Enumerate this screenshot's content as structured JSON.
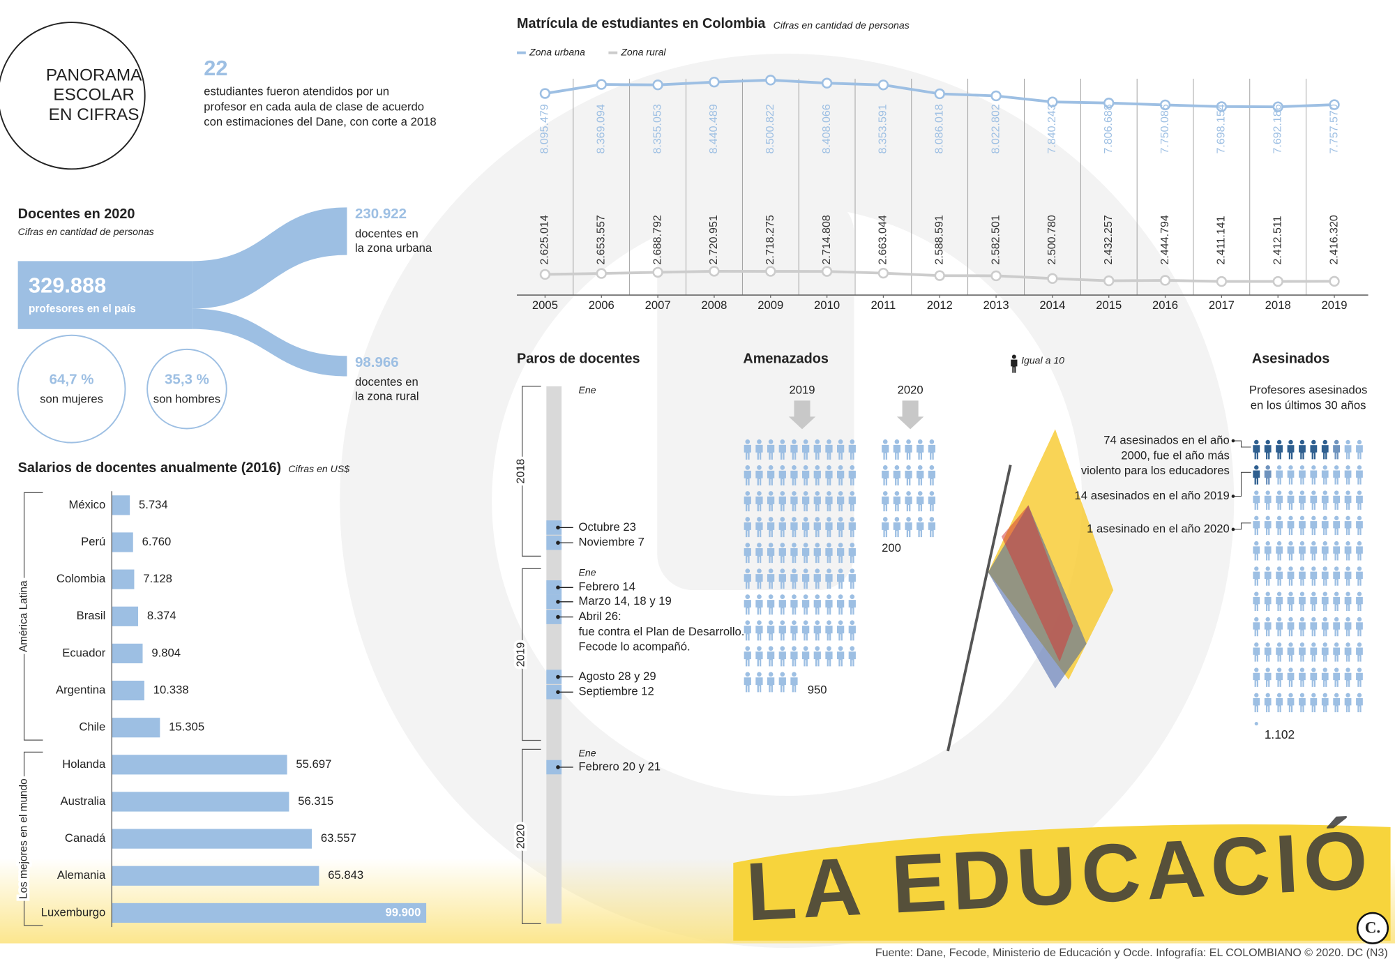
{
  "header": {
    "title": [
      "PANORAMA",
      "ESCOLAR",
      "EN CIFRAS"
    ],
    "stat": "22",
    "stat_text": [
      "estudiantes fueron atendidos por un",
      "profesor en cada aula de clase de acuerdo",
      "con estimaciones del Dane, con corte a 2018"
    ]
  },
  "chart_data": [
    {
      "type": "line",
      "title": "Matrícula de estudiantes en Colombia",
      "subtitle": "Cifras en cantidad de personas",
      "x": [
        2005,
        2006,
        2007,
        2008,
        2009,
        2010,
        2011,
        2012,
        2013,
        2014,
        2015,
        2016,
        2017,
        2018,
        2019
      ],
      "xlim": [
        2004.5,
        2019.6
      ],
      "ylim": [
        2000000,
        9300000
      ],
      "series": [
        {
          "name": "Zona urbana",
          "color": "#9dbfe3",
          "values": [
            8095479,
            8369094,
            8355053,
            8440489,
            8500822,
            8408066,
            8353591,
            8086018,
            8022802,
            7840243,
            7806688,
            7750086,
            7698154,
            7692186,
            7757570
          ],
          "value_labels": [
            "8.095.479",
            "8.369.094",
            "8.355.053",
            "8.440.489",
            "8.500.822",
            "8.408.066",
            "8.353.591",
            "8.086.018",
            "8.022.802",
            "7.840.243",
            "7.806.688",
            "7.750.086",
            "7.698.154",
            "7.692.186",
            "7.757.570"
          ]
        },
        {
          "name": "Zona rural",
          "color": "#cccccc",
          "values": [
            2625014,
            2653557,
            2688792,
            2720951,
            2718275,
            2714808,
            2663044,
            2588591,
            2582501,
            2500780,
            2432257,
            2444794,
            2411141,
            2412511,
            2416320
          ],
          "value_labels": [
            "2.625.014",
            "2.653.557",
            "2.688.792",
            "2.720.951",
            "2.718.275",
            "2.714.808",
            "2.663.044",
            "2.588.591",
            "2.582.501",
            "2.500.780",
            "2.432.257",
            "2.444.794",
            "2.411.141",
            "2.412.511",
            "2.416.320"
          ]
        }
      ]
    },
    {
      "type": "bar",
      "orientation": "horizontal",
      "title": "Salarios de docentes anualmente (2016)",
      "subtitle": "Cifras en US$",
      "categories": [
        "México",
        "Perú",
        "Colombia",
        "Brasil",
        "Ecuador",
        "Argentina",
        "Chile",
        "Holanda",
        "Australia",
        "Canadá",
        "Alemania",
        "Luxemburgo"
      ],
      "values": [
        5734,
        6760,
        7128,
        8374,
        9804,
        10338,
        15305,
        55697,
        56315,
        63557,
        65843,
        99900
      ],
      "value_labels": [
        "5.734",
        "6.760",
        "7.128",
        "8.374",
        "9.804",
        "10.338",
        "15.305",
        "55.697",
        "56.315",
        "63.557",
        "65.843",
        "99.900"
      ],
      "color": "#9dbfe3",
      "xlim": [
        0,
        100000
      ],
      "groups": [
        {
          "name": "América Latina",
          "members": [
            "México",
            "Perú",
            "Colombia",
            "Brasil",
            "Ecuador",
            "Argentina",
            "Chile"
          ]
        },
        {
          "name": "Los mejores en el mundo",
          "members": [
            "Holanda",
            "Australia",
            "Canadá",
            "Alemania",
            "Luxemburgo"
          ]
        }
      ]
    },
    {
      "type": "sankey",
      "title": "Docentes en 2020",
      "subtitle": "Cifras en cantidad de personas",
      "color": "#9dbfe3",
      "total": {
        "value": 329888,
        "label": "329.888",
        "text": "profesores en el país"
      },
      "flows": [
        {
          "value": 230922,
          "label": "230.922",
          "text": [
            "docentes en",
            "la zona urbana"
          ]
        },
        {
          "value": 98966,
          "label": "98.966",
          "text": [
            "docentes en",
            "la zona rural"
          ]
        }
      ],
      "shares": [
        {
          "value": 64.7,
          "label": "64,7 %",
          "text": "son mujeres"
        },
        {
          "value": 35.3,
          "label": "35,3 %",
          "text": "son hombres"
        }
      ]
    },
    {
      "type": "pictogram",
      "title": "Amenazados",
      "unit": 10,
      "unit_label": "Igual a 10",
      "color": "#9dbfe3",
      "groups": [
        {
          "name": "2019",
          "value": 950
        },
        {
          "name": "2020",
          "value": 200
        }
      ]
    },
    {
      "type": "pictogram",
      "title": "Asesinados",
      "subtitle": [
        "Profesores asesinados",
        "en los últimos 30 años"
      ],
      "color": "#9dbfe3",
      "highlight_color": "#2f5f8f",
      "value": 1102,
      "value_label": "1.102",
      "annotations": [
        {
          "value": 74,
          "text": [
            "74 asesinados en el año",
            "2000, fue el año más",
            "violento para los educadores"
          ]
        },
        {
          "value": 14,
          "text": [
            "14 asesinados en el año 2019"
          ]
        },
        {
          "value": 1,
          "text": [
            "1  asesinado en el año 2020"
          ]
        }
      ]
    }
  ],
  "paros": {
    "title": "Paros de docentes",
    "years": [
      "2018",
      "2019",
      "2020"
    ],
    "month": "Ene",
    "events": [
      [
        "Octubre 23"
      ],
      [
        "Noviembre 7"
      ],
      [
        "Febrero 14"
      ],
      [
        "Marzo 14, 18 y 19"
      ],
      [
        "Abril 26:",
        "fue contra el Plan de Desarrollo.",
        "Fecode lo acompañó."
      ],
      [
        "Agosto 28 y 29"
      ],
      [
        "Septiembre 12"
      ],
      [
        "Febrero 20 y 21"
      ]
    ]
  },
  "photo": {
    "banner": "LA EDUCACIÓ"
  },
  "logo": "C.",
  "source": "Fuente: Dane, Fecode, Ministerio de Educación y Ocde. Infografía: EL COLOMBIANO © 2020. DC (N3)"
}
